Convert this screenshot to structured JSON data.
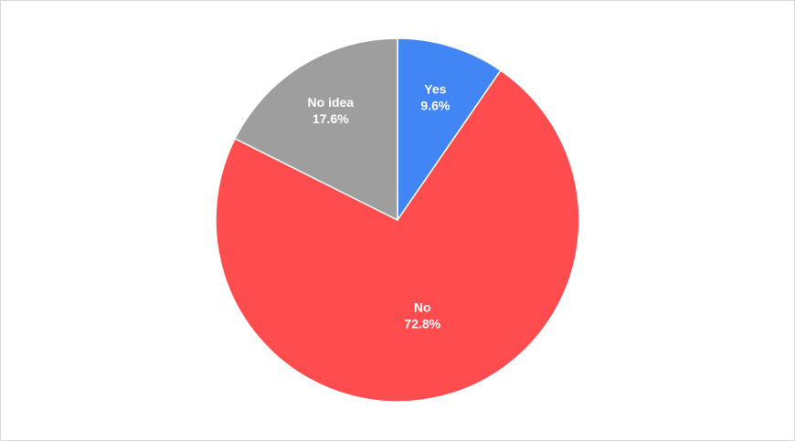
{
  "chart_data": {
    "type": "pie",
    "categories": [
      "Yes",
      "No",
      "No idea"
    ],
    "values": [
      9.6,
      72.8,
      17.6
    ],
    "value_labels": [
      "9.6%",
      "72.8%",
      "17.6%"
    ],
    "colors": [
      "#4285f4",
      "#ff4d4f",
      "#9e9e9e"
    ]
  }
}
